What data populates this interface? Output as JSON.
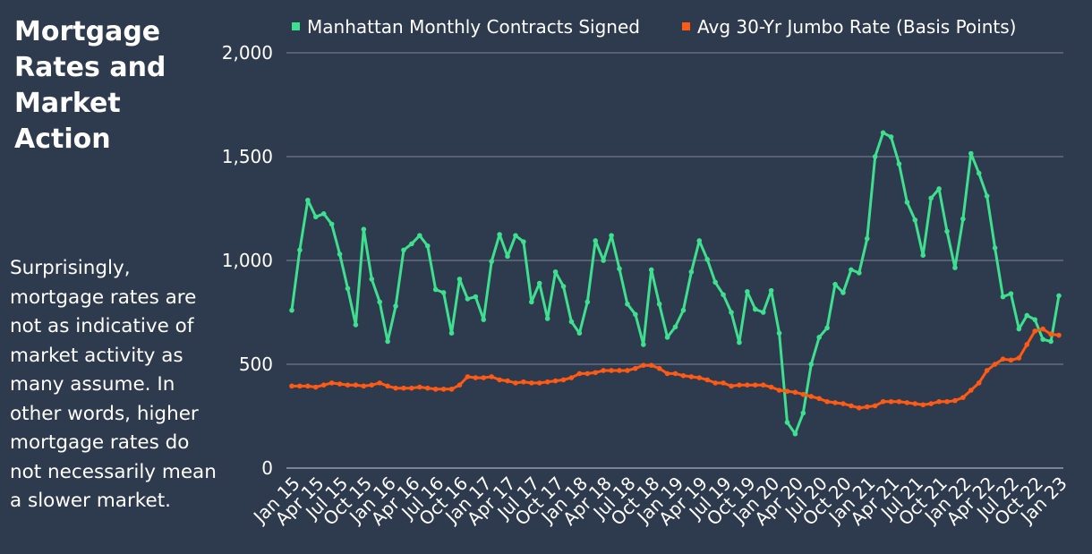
{
  "chart_data": {
    "type": "line",
    "title": "Mortgage Rates and Market Action",
    "annotation": "Surprisingly, mortgage rates are not as indicative of market activity as many assume. In other words, higher mortgage rates do not necessarily mean a slower market.",
    "categories": [
      "Jan 15",
      null,
      null,
      "Apr 15",
      null,
      null,
      "Jul 15",
      null,
      null,
      "Oct 15",
      null,
      null,
      "Jan 16",
      null,
      null,
      "Apr 16",
      null,
      null,
      "Jul 16",
      null,
      null,
      "Oct 16",
      null,
      null,
      "Jan 17",
      null,
      null,
      "Apr 17",
      null,
      null,
      "Jul 17",
      null,
      null,
      "Oct 17",
      null,
      null,
      "Jan 18",
      null,
      null,
      "Apr 18",
      null,
      null,
      "Jul 18",
      null,
      null,
      "Oct 18",
      null,
      null,
      "Jan 19",
      null,
      null,
      "Apr 19",
      null,
      null,
      "Jul 19",
      null,
      null,
      "Oct 19",
      null,
      null,
      "Jan 20",
      null,
      null,
      "Apr 20",
      null,
      null,
      "Jul 20",
      null,
      null,
      "Oct 20",
      null,
      null,
      "Jan 21",
      null,
      null,
      "Apr 21",
      null,
      null,
      "Jul 21",
      null,
      null,
      "Oct 21",
      null,
      null,
      "Jan 22",
      null,
      null,
      "Apr 22",
      null,
      null,
      "Jul 22",
      null,
      null,
      "Oct 22",
      null,
      null,
      "Jan 23"
    ],
    "series": [
      {
        "name": "Manhattan Monthly Contracts Signed",
        "color": "#3ee08f",
        "values": [
          760,
          1050,
          1290,
          1210,
          1225,
          1175,
          1030,
          865,
          690,
          1150,
          910,
          800,
          610,
          780,
          1050,
          1080,
          1120,
          1070,
          860,
          845,
          650,
          910,
          815,
          825,
          715,
          995,
          1125,
          1020,
          1120,
          1090,
          800,
          890,
          720,
          945,
          875,
          705,
          650,
          800,
          1095,
          1000,
          1120,
          960,
          790,
          740,
          595,
          955,
          790,
          630,
          680,
          760,
          945,
          1095,
          1005,
          895,
          835,
          750,
          605,
          850,
          765,
          750,
          855,
          650,
          220,
          165,
          265,
          500,
          630,
          675,
          885,
          845,
          955,
          940,
          1105,
          1500,
          1615,
          1595,
          1465,
          1280,
          1195,
          1025,
          1300,
          1345,
          1140,
          965,
          1200,
          1515,
          1420,
          1310,
          1060,
          825,
          840,
          670,
          735,
          715,
          620,
          610,
          830
        ]
      },
      {
        "name": "Avg 30-Yr Jumbo Rate (Basis Points)",
        "color": "#ff5a14",
        "values": [
          395,
          395,
          395,
          390,
          400,
          410,
          405,
          400,
          400,
          395,
          400,
          410,
          395,
          385,
          385,
          385,
          390,
          385,
          380,
          380,
          380,
          400,
          440,
          435,
          435,
          440,
          425,
          420,
          410,
          415,
          410,
          410,
          415,
          420,
          425,
          435,
          455,
          455,
          460,
          470,
          470,
          470,
          470,
          480,
          495,
          495,
          480,
          455,
          455,
          445,
          440,
          435,
          425,
          410,
          410,
          395,
          400,
          400,
          400,
          400,
          390,
          375,
          370,
          365,
          355,
          345,
          335,
          320,
          315,
          310,
          300,
          290,
          295,
          300,
          320,
          320,
          320,
          315,
          310,
          305,
          310,
          320,
          320,
          325,
          340,
          375,
          410,
          470,
          500,
          525,
          520,
          530,
          595,
          660,
          670,
          645,
          640
        ]
      }
    ],
    "ylim": [
      0,
      2000
    ],
    "yticks": [
      0,
      500,
      {
        "value": 1000,
        "label": "1,000"
      },
      {
        "value": 1500,
        "label": "1,500"
      },
      {
        "value": 2000,
        "label": "2,000"
      }
    ],
    "grid": true
  }
}
